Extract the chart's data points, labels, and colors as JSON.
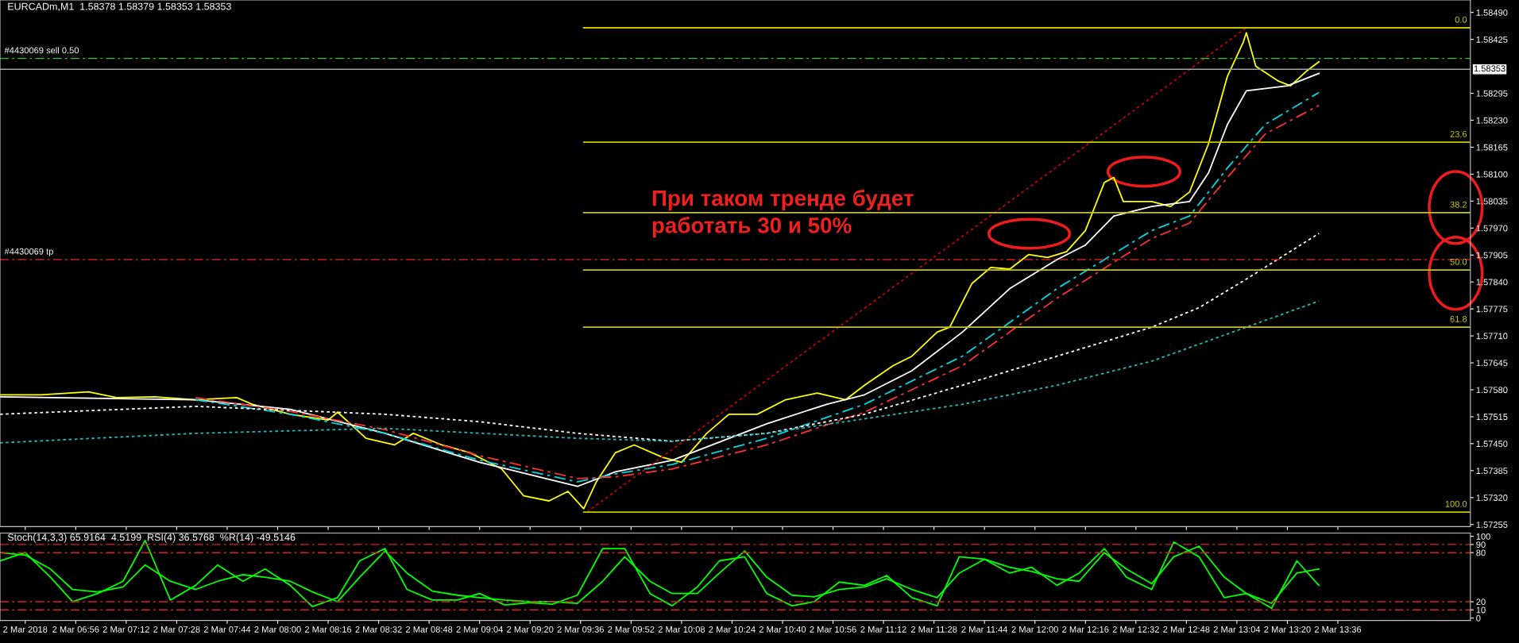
{
  "chart_data": [
    {
      "type": "line",
      "title": "EURCADm,M1  1.58378 1.58379 1.58353 1.58353",
      "annotations": [
        "При таком тренде будет\nработать 30 и 50%"
      ],
      "xlim": [
        "2018-03-02T06:32",
        "2018-03-02T14:18"
      ],
      "ylim": [
        1.5725,
        1.5852
      ],
      "yticks": [
        {
          "value": 1.5849,
          "label": "1.58490"
        },
        {
          "value": 1.58425,
          "label": "1.58425"
        },
        {
          "value": 1.58295,
          "label": "1.58295"
        },
        {
          "value": 1.5823,
          "label": "1.58230"
        },
        {
          "value": 1.58165,
          "label": "1.58165"
        },
        {
          "value": 1.581,
          "label": "1.58100"
        },
        {
          "value": 1.58035,
          "label": "1.58035"
        },
        {
          "value": 1.5797,
          "label": "1.57970"
        },
        {
          "value": 1.57905,
          "label": "1.57905"
        },
        {
          "value": 1.5784,
          "label": "1.57840"
        },
        {
          "value": 1.57775,
          "label": "1.57775"
        },
        {
          "value": 1.5771,
          "label": "1.57710"
        },
        {
          "value": 1.57645,
          "label": "1.57645"
        },
        {
          "value": 1.5758,
          "label": "1.57580"
        },
        {
          "value": 1.57515,
          "label": "1.57515"
        },
        {
          "value": 1.5745,
          "label": "1.57450"
        },
        {
          "value": 1.57385,
          "label": "1.57385"
        },
        {
          "value": 1.5732,
          "label": "1.57320"
        },
        {
          "value": 1.57255,
          "label": "1.57255"
        }
      ],
      "xticks": [
        "2018-03-02T06:40",
        "2018-03-02T06:56",
        "2018-03-02T07:12",
        "2018-03-02T07:28",
        "2018-03-02T07:44",
        "2018-03-02T08:00",
        "2018-03-02T08:16",
        "2018-03-02T08:32",
        "2018-03-02T08:48",
        "2018-03-02T09:04",
        "2018-03-02T09:20",
        "2018-03-02T09:36",
        "2018-03-02T09:52",
        "2018-03-02T10:08",
        "2018-03-02T10:24",
        "2018-03-02T10:40",
        "2018-03-02T10:56",
        "2018-03-02T11:12",
        "2018-03-02T11:28",
        "2018-03-02T11:44",
        "2018-03-02T12:00",
        "2018-03-02T12:16",
        "2018-03-02T12:32",
        "2018-03-02T12:48",
        "2018-03-02T13:04",
        "2018-03-02T13:20",
        "2018-03-02T13:36"
      ],
      "tick_labels": "y",
      "grid": false,
      "legend": false,
      "ref_lines": [
        {
          "axis": "y",
          "value": 1.58379,
          "label": "#4430069 sell 0.50",
          "color": "#22cc22",
          "line_style": "dashed"
        },
        {
          "axis": "y",
          "value": 1.57894,
          "label": "#4430069 tp",
          "color": "#cc2222",
          "line_style": "dashed"
        },
        {
          "axis": "y",
          "value": 1.58353,
          "label": "1.58353",
          "color": "#a0a4a8",
          "line_style": "solid"
        }
      ],
      "series": [
        {
          "color": "#ffff00",
          "line_style": "solid",
          "x": [
            "2018-03-02T06:32",
            "2018-03-02T06:45",
            "2018-03-02T07:00",
            "2018-03-02T07:09",
            "2018-03-02T07:21",
            "2018-03-02T07:34",
            "2018-03-02T07:47",
            "2018-03-02T07:52",
            "2018-03-02T08:04",
            "2018-03-02T08:16",
            "2018-03-02T08:19",
            "2018-03-02T08:28",
            "2018-03-02T08:37",
            "2018-03-02T08:43",
            "2018-03-02T08:52",
            "2018-03-02T09:01",
            "2018-03-02T09:11",
            "2018-03-02T09:18",
            "2018-03-02T09:26",
            "2018-03-02T09:32",
            "2018-03-02T09:37",
            "2018-03-02T09:41",
            "2018-03-02T09:47",
            "2018-03-02T09:53",
            "2018-03-02T10:02",
            "2018-03-02T10:08",
            "2018-03-02T10:16",
            "2018-03-02T10:23",
            "2018-03-02T10:32",
            "2018-03-02T10:41",
            "2018-03-02T10:51",
            "2018-03-02T11:00",
            "2018-03-02T11:06",
            "2018-03-02T11:15",
            "2018-03-02T11:21",
            "2018-03-02T11:29",
            "2018-03-02T11:33",
            "2018-03-02T11:40",
            "2018-03-02T11:46",
            "2018-03-02T11:52",
            "2018-03-02T11:58",
            "2018-03-02T12:04",
            "2018-03-02T12:10",
            "2018-03-02T12:16",
            "2018-03-02T12:22",
            "2018-03-02T12:25",
            "2018-03-02T12:28",
            "2018-03-02T12:37",
            "2018-03-02T12:43",
            "2018-03-02T12:49",
            "2018-03-02T12:55",
            "2018-03-02T13:01",
            "2018-03-02T13:06",
            "2018-03-02T13:07",
            "2018-03-02T13:10",
            "2018-03-02T13:17",
            "2018-03-02T13:21",
            "2018-03-02T13:26",
            "2018-03-02T13:30"
          ],
          "values": [
            1.57568,
            1.57568,
            1.57575,
            1.57561,
            1.57563,
            1.57556,
            1.57561,
            1.57545,
            1.57521,
            1.57507,
            1.57526,
            1.57463,
            1.57447,
            1.57475,
            1.57447,
            1.57428,
            1.57389,
            1.57324,
            1.57312,
            1.57335,
            1.57293,
            1.57358,
            1.57428,
            1.57447,
            1.57417,
            1.57405,
            1.57475,
            1.57521,
            1.57521,
            1.57556,
            1.57572,
            1.57556,
            1.57591,
            1.57638,
            1.57661,
            1.57719,
            1.57731,
            1.57836,
            1.57875,
            1.57871,
            1.57906,
            1.57899,
            1.57913,
            1.57964,
            1.5808,
            1.58092,
            1.58034,
            1.58034,
            1.58022,
            1.58057,
            1.58173,
            1.58336,
            1.58418,
            1.58441,
            1.5836,
            1.58325,
            1.58313,
            1.58348,
            1.58371
          ]
        },
        {
          "color": "#ffffff",
          "line_style": "solid",
          "x": [
            "2018-03-02T06:32",
            "2018-03-02T07:34",
            "2018-03-02T08:04",
            "2018-03-02T08:34",
            "2018-03-02T09:04",
            "2018-03-02T09:35",
            "2018-03-02T09:47",
            "2018-03-02T10:05",
            "2018-03-02T10:35",
            "2018-03-02T10:54",
            "2018-03-02T11:06",
            "2018-03-02T11:21",
            "2018-03-02T11:37",
            "2018-03-02T11:52",
            "2018-03-02T12:07",
            "2018-03-02T12:16",
            "2018-03-02T12:25",
            "2018-03-02T12:37",
            "2018-03-02T12:49",
            "2018-03-02T12:55",
            "2018-03-02T13:01",
            "2018-03-02T13:07",
            "2018-03-02T13:20",
            "2018-03-02T13:30"
          ],
          "values": [
            1.57563,
            1.57556,
            1.57533,
            1.57475,
            1.57405,
            1.57347,
            1.57382,
            1.5741,
            1.57498,
            1.57545,
            1.57568,
            1.57626,
            1.57719,
            1.57824,
            1.57894,
            1.57929,
            1.57999,
            1.58022,
            1.58034,
            1.58103,
            1.5822,
            1.58301,
            1.58313,
            1.58343
          ]
        },
        {
          "color": "#00d8e0",
          "line_style": "dashed",
          "x": [
            "2018-03-02T07:34",
            "2018-03-02T08:04",
            "2018-03-02T08:34",
            "2018-03-02T09:04",
            "2018-03-02T09:35",
            "2018-03-02T09:47",
            "2018-03-02T10:05",
            "2018-03-02T10:35",
            "2018-03-02T11:06",
            "2018-03-02T11:37",
            "2018-03-02T12:07",
            "2018-03-02T12:37",
            "2018-03-02T12:49",
            "2018-03-02T13:01",
            "2018-03-02T13:13",
            "2018-03-02T13:30"
          ],
          "values": [
            1.57556,
            1.57521,
            1.57475,
            1.5741,
            1.57358,
            1.57377,
            1.574,
            1.57463,
            1.57545,
            1.57661,
            1.57824,
            1.57964,
            1.57999,
            1.58115,
            1.5822,
            1.58297
          ]
        },
        {
          "color": "#ff3030",
          "line_style": "dashed",
          "x": [
            "2018-03-02T07:34",
            "2018-03-02T08:04",
            "2018-03-02T08:34",
            "2018-03-02T09:04",
            "2018-03-02T09:35",
            "2018-03-02T09:47",
            "2018-03-02T10:05",
            "2018-03-02T10:35",
            "2018-03-02T11:06",
            "2018-03-02T11:37",
            "2018-03-02T12:07",
            "2018-03-02T12:37",
            "2018-03-02T12:49",
            "2018-03-02T13:01",
            "2018-03-02T13:13",
            "2018-03-02T13:30"
          ],
          "values": [
            1.57561,
            1.57528,
            1.57484,
            1.57421,
            1.57366,
            1.5737,
            1.57389,
            1.57447,
            1.57526,
            1.57638,
            1.57801,
            1.57945,
            1.57982,
            1.58092,
            1.58197,
            1.58266
          ]
        },
        {
          "color": "#ffffff",
          "line_style": "dotted",
          "x": [
            "2018-03-02T06:32",
            "2018-03-02T07:34",
            "2018-03-02T08:34",
            "2018-03-02T09:04",
            "2018-03-02T09:35",
            "2018-03-02T10:05",
            "2018-03-02T10:35",
            "2018-03-02T11:06",
            "2018-03-02T11:37",
            "2018-03-02T12:07",
            "2018-03-02T12:37",
            "2018-03-02T12:52",
            "2018-03-02T13:07",
            "2018-03-02T13:30"
          ],
          "values": [
            1.57521,
            1.5754,
            1.57521,
            1.57503,
            1.57475,
            1.57456,
            1.57475,
            1.57521,
            1.57591,
            1.57661,
            1.57731,
            1.57778,
            1.57847,
            1.57957
          ]
        },
        {
          "color": "#20b8b8",
          "line_style": "dotted",
          "x": [
            "2018-03-02T06:32",
            "2018-03-02T07:34",
            "2018-03-02T08:34",
            "2018-03-02T09:35",
            "2018-03-02T10:05",
            "2018-03-02T10:35",
            "2018-03-02T11:06",
            "2018-03-02T11:37",
            "2018-03-02T12:07",
            "2018-03-02T12:37",
            "2018-03-02T13:07",
            "2018-03-02T13:30"
          ],
          "values": [
            1.57452,
            1.57475,
            1.57487,
            1.57463,
            1.57456,
            1.57475,
            1.5751,
            1.57545,
            1.57591,
            1.57649,
            1.57731,
            1.57794
          ]
        },
        {
          "color": "#c00000",
          "line_style": "dotted",
          "x": [
            "2018-03-02T09:38",
            "2018-03-02T13:07"
          ],
          "values": [
            1.57285,
            1.58453
          ]
        },
        {
          "name": "0.0",
          "color": "#c8c800",
          "line_style": "solid",
          "x": [
            "2018-03-02T09:37",
            "2018-03-02T14:18"
          ],
          "values": [
            1.58453,
            1.58453
          ]
        },
        {
          "name": "23.6",
          "color": "#c8c800",
          "line_style": "solid",
          "x": [
            "2018-03-02T09:37",
            "2018-03-02T14:18"
          ],
          "values": [
            1.58177,
            1.58177
          ]
        },
        {
          "name": "38.2",
          "color": "#c8c800",
          "line_style": "solid",
          "x": [
            "2018-03-02T09:37",
            "2018-03-02T14:18"
          ],
          "values": [
            1.58007,
            1.58007
          ]
        },
        {
          "name": "50.0",
          "color": "#c8c800",
          "line_style": "solid",
          "x": [
            "2018-03-02T09:37",
            "2018-03-02T14:18"
          ],
          "values": [
            1.57869,
            1.57869
          ]
        },
        {
          "name": "61.8",
          "color": "#c8c800",
          "line_style": "solid",
          "x": [
            "2018-03-02T09:37",
            "2018-03-02T14:18"
          ],
          "values": [
            1.57731,
            1.57731
          ]
        },
        {
          "name": "100.0",
          "color": "#c8c800",
          "line_style": "solid",
          "x": [
            "2018-03-02T09:37",
            "2018-03-02T14:18"
          ],
          "values": [
            1.57285,
            1.57285
          ]
        }
      ]
    },
    {
      "type": "line",
      "title": "Stoch(14,3,3) 65.9164  4.5199  RSI(4) 36.5768  %R(14) -49.5146",
      "xlim": [
        "2018-03-02T06:32",
        "2018-03-02T14:18"
      ],
      "ylim": [
        -3,
        104
      ],
      "yticks": [
        0,
        10,
        20,
        80,
        90,
        100
      ],
      "xticks": [
        {
          "value": "2018-03-02T06:40",
          "label": "2 Mar 2018"
        },
        {
          "value": "2018-03-02T06:56",
          "label": "2 Mar 06:56"
        },
        {
          "value": "2018-03-02T07:12",
          "label": "2 Mar 07:12"
        },
        {
          "value": "2018-03-02T07:28",
          "label": "2 Mar 07:28"
        },
        {
          "value": "2018-03-02T07:44",
          "label": "2 Mar 07:44"
        },
        {
          "value": "2018-03-02T08:00",
          "label": "2 Mar 08:00"
        },
        {
          "value": "2018-03-02T08:16",
          "label": "2 Mar 08:16"
        },
        {
          "value": "2018-03-02T08:32",
          "label": "2 Mar 08:32"
        },
        {
          "value": "2018-03-02T08:48",
          "label": "2 Mar 08:48"
        },
        {
          "value": "2018-03-02T09:04",
          "label": "2 Mar 09:04"
        },
        {
          "value": "2018-03-02T09:20",
          "label": "2 Mar 09:20"
        },
        {
          "value": "2018-03-02T09:36",
          "label": "2 Mar 09:36"
        },
        {
          "value": "2018-03-02T09:52",
          "label": "2 Mar 09:52"
        },
        {
          "value": "2018-03-02T10:08",
          "label": "2 Mar 10:08"
        },
        {
          "value": "2018-03-02T10:24",
          "label": "2 Mar 10:24"
        },
        {
          "value": "2018-03-02T10:40",
          "label": "2 Mar 10:40"
        },
        {
          "value": "2018-03-02T10:56",
          "label": "2 Mar 10:56"
        },
        {
          "value": "2018-03-02T11:12",
          "label": "2 Mar 11:12"
        },
        {
          "value": "2018-03-02T11:28",
          "label": "2 Mar 11:28"
        },
        {
          "value": "2018-03-02T11:44",
          "label": "2 Mar 11:44"
        },
        {
          "value": "2018-03-02T12:00",
          "label": "2 Mar 12:00"
        },
        {
          "value": "2018-03-02T12:16",
          "label": "2 Mar 12:16"
        },
        {
          "value": "2018-03-02T12:32",
          "label": "2 Mar 12:32"
        },
        {
          "value": "2018-03-02T12:48",
          "label": "2 Mar 12:48"
        },
        {
          "value": "2018-03-02T13:04",
          "label": "2 Mar 13:04"
        },
        {
          "value": "2018-03-02T13:20",
          "label": "2 Mar 13:20"
        },
        {
          "value": "2018-03-02T13:36",
          "label": "2 Mar 13:36"
        }
      ],
      "grid": false,
      "legend": false,
      "ref_lines": [
        {
          "axis": "y",
          "value": 90,
          "color": "#dd2020",
          "line_style": "dashed"
        },
        {
          "axis": "y",
          "value": 80,
          "color": "#dd2020",
          "line_style": "dashed"
        },
        {
          "axis": "y",
          "value": 20,
          "color": "#dd2020",
          "line_style": "dashed"
        },
        {
          "axis": "y",
          "value": 10,
          "color": "#dd2020",
          "line_style": "dashed"
        }
      ],
      "x": [
        "2018-03-02T06:32",
        "2018-03-02T06:40",
        "2018-03-02T06:48",
        "2018-03-02T06:55",
        "2018-03-02T07:03",
        "2018-03-02T07:11",
        "2018-03-02T07:18",
        "2018-03-02T07:26",
        "2018-03-02T07:34",
        "2018-03-02T07:41",
        "2018-03-02T07:49",
        "2018-03-02T07:56",
        "2018-03-02T08:04",
        "2018-03-02T08:11",
        "2018-03-02T08:19",
        "2018-03-02T08:26",
        "2018-03-02T08:34",
        "2018-03-02T08:41",
        "2018-03-02T08:49",
        "2018-03-02T08:57",
        "2018-03-02T09:04",
        "2018-03-02T09:12",
        "2018-03-02T09:20",
        "2018-03-02T09:27",
        "2018-03-02T09:35",
        "2018-03-02T09:43",
        "2018-03-02T09:50",
        "2018-03-02T09:58",
        "2018-03-02T10:05",
        "2018-03-02T10:13",
        "2018-03-02T10:20",
        "2018-03-02T10:28",
        "2018-03-02T10:35",
        "2018-03-02T10:43",
        "2018-03-02T10:50",
        "2018-03-02T10:58",
        "2018-03-02T11:06",
        "2018-03-02T11:13",
        "2018-03-02T11:21",
        "2018-03-02T11:29",
        "2018-03-02T11:36",
        "2018-03-02T11:44",
        "2018-03-02T11:52",
        "2018-03-02T11:59",
        "2018-03-02T12:07",
        "2018-03-02T12:14",
        "2018-03-02T12:22",
        "2018-03-02T12:29",
        "2018-03-02T12:37",
        "2018-03-02T12:44",
        "2018-03-02T12:52",
        "2018-03-02T13:00",
        "2018-03-02T13:07",
        "2018-03-02T13:15",
        "2018-03-02T13:23",
        "2018-03-02T13:30"
      ],
      "series": [
        {
          "color": "#00ff00",
          "line_style": "solid",
          "values": [
            70,
            80,
            50,
            20,
            30,
            45,
            95,
            22,
            40,
            65,
            45,
            60,
            40,
            14,
            25,
            70,
            85,
            35,
            22,
            22,
            30,
            16,
            19,
            17,
            28,
            85,
            85,
            30,
            15,
            38,
            70,
            75,
            30,
            15,
            20,
            44,
            40,
            52,
            25,
            15,
            75,
            72,
            55,
            62,
            40,
            55,
            85,
            50,
            35,
            93,
            75,
            25,
            30,
            12,
            70,
            40
          ]
        },
        {
          "color": "#00ff00",
          "line_style": "solid",
          "values": [
            80,
            77,
            60,
            35,
            32,
            38,
            65,
            45,
            35,
            45,
            53,
            50,
            45,
            32,
            20,
            50,
            82,
            55,
            33,
            28,
            25,
            22,
            20,
            20,
            18,
            45,
            75,
            45,
            30,
            30,
            55,
            82,
            50,
            28,
            26,
            35,
            38,
            48,
            35,
            25,
            55,
            72,
            62,
            57,
            48,
            45,
            80,
            60,
            42,
            75,
            88,
            50,
            30,
            18,
            55,
            60
          ]
        }
      ]
    }
  ]
}
